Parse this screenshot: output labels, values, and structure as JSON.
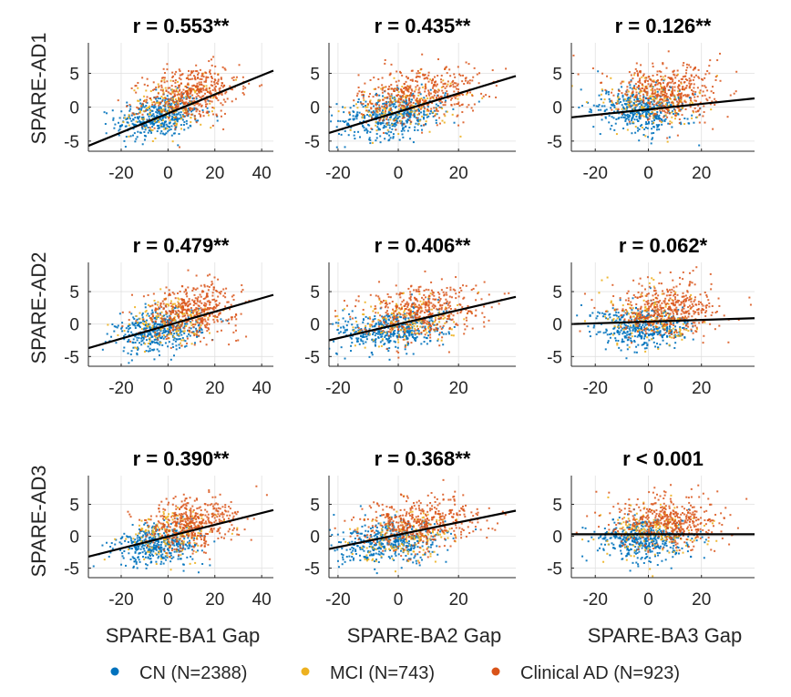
{
  "chart_data": {
    "type": "scatter",
    "rows": [
      "SPARE-AD1",
      "SPARE-AD2",
      "SPARE-AD3"
    ],
    "columns": [
      "SPARE-BA1 Gap",
      "SPARE-BA2 Gap",
      "SPARE-BA3 Gap"
    ],
    "x_ticks": [
      [
        -20,
        0,
        20,
        40
      ],
      [
        -20,
        0,
        20
      ],
      [
        -20,
        0,
        20
      ]
    ],
    "x_tick_labels": [
      [
        "-20",
        "0",
        "20",
        "40"
      ],
      [
        "-20",
        "0",
        "20"
      ],
      [
        "-20",
        "0",
        "20"
      ]
    ],
    "xlim": [
      [
        -34,
        45
      ],
      [
        -23,
        39
      ],
      [
        -29,
        40
      ]
    ],
    "y_ticks": [
      -5,
      0,
      5
    ],
    "y_tick_labels": [
      "-5",
      "0",
      "5"
    ],
    "ylim": [
      -6.5,
      9.5
    ],
    "grid": true,
    "legend_position": "bottom",
    "series": [
      {
        "name": "CN (N=2388)",
        "color": "#0072BD",
        "n": 2388
      },
      {
        "name": "MCI (N=743)",
        "color": "#EDB120",
        "n": 743
      },
      {
        "name": "Clinical AD (N=923)",
        "color": "#D95319",
        "n": 923
      }
    ],
    "panels": [
      {
        "row": 0,
        "col": 0,
        "title": "r = 0.553**",
        "fit": {
          "x": [
            -34,
            45
          ],
          "y": [
            -5.7,
            5.4
          ]
        }
      },
      {
        "row": 0,
        "col": 1,
        "title": "r = 0.435**",
        "fit": {
          "x": [
            -23,
            39
          ],
          "y": [
            -3.8,
            4.6
          ]
        }
      },
      {
        "row": 0,
        "col": 2,
        "title": "r = 0.126**",
        "fit": {
          "x": [
            -29,
            40
          ],
          "y": [
            -1.5,
            1.3
          ]
        }
      },
      {
        "row": 1,
        "col": 0,
        "title": "r = 0.479**",
        "fit": {
          "x": [
            -34,
            45
          ],
          "y": [
            -3.7,
            4.5
          ]
        }
      },
      {
        "row": 1,
        "col": 1,
        "title": "r = 0.406**",
        "fit": {
          "x": [
            -23,
            39
          ],
          "y": [
            -2.5,
            4.2
          ]
        }
      },
      {
        "row": 1,
        "col": 2,
        "title": "r = 0.062*",
        "fit": {
          "x": [
            -29,
            40
          ],
          "y": [
            0.0,
            0.9
          ]
        }
      },
      {
        "row": 2,
        "col": 0,
        "title": "r = 0.390**",
        "fit": {
          "x": [
            -34,
            45
          ],
          "y": [
            -3.2,
            4.1
          ]
        }
      },
      {
        "row": 2,
        "col": 1,
        "title": "r = 0.368**",
        "fit": {
          "x": [
            -23,
            39
          ],
          "y": [
            -2.0,
            4.0
          ]
        }
      },
      {
        "row": 2,
        "col": 2,
        "title": "r < 0.001",
        "fit": {
          "x": [
            -29,
            40
          ],
          "y": [
            0.3,
            0.3
          ]
        }
      }
    ]
  }
}
